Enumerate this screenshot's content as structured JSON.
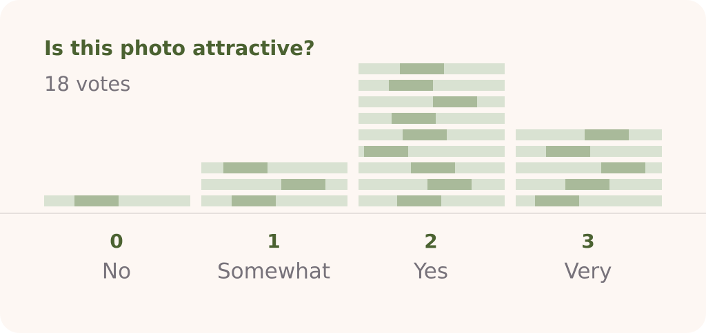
{
  "chart_data": {
    "type": "strip-stack",
    "title": "Is this photo attractive?",
    "subtitle": "18 votes",
    "scores": [
      "0",
      "1",
      "2",
      "3"
    ],
    "categories": [
      "No",
      "Somewhat",
      "Yes",
      "Very"
    ],
    "values": [
      1,
      3,
      9,
      5
    ],
    "color": "#d9e2d2",
    "accent_color": "#a9ba9a"
  }
}
